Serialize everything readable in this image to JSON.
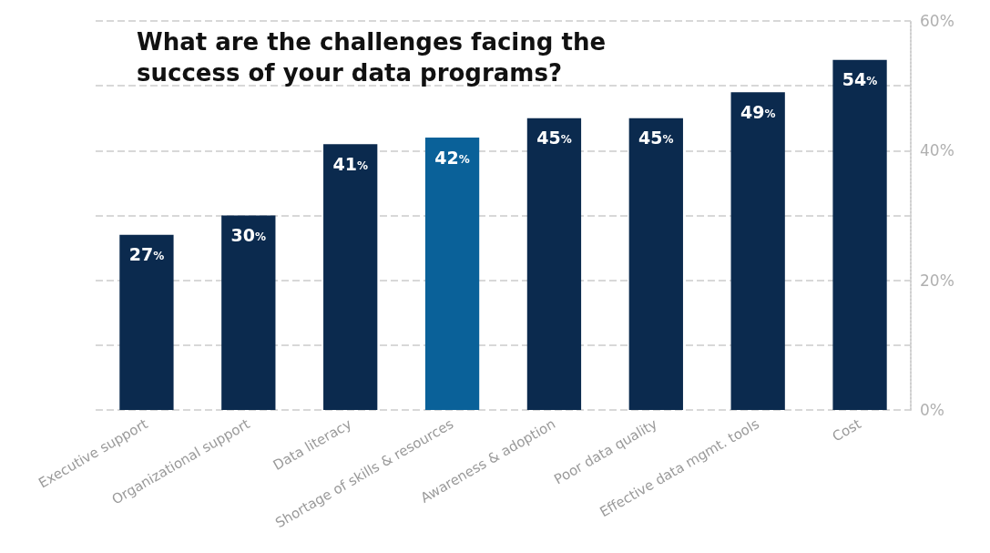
{
  "chart_data": {
    "type": "bar",
    "title": "What are the challenges facing the success of your data programs?",
    "categories": [
      "Executive support",
      "Organizational support",
      "Data literacy",
      "Shortage of skills & resources",
      "Awareness & adoption",
      "Poor data quality",
      "Effective data mgmt. tools",
      "Cost"
    ],
    "values": [
      27,
      30,
      41,
      42,
      45,
      45,
      49,
      54
    ],
    "colors": [
      "#0b2a4e",
      "#0b2a4e",
      "#0b2a4e",
      "#0a6199",
      "#0b2a4e",
      "#0b2a4e",
      "#0b2a4e",
      "#0b2a4e"
    ],
    "value_labels": [
      "27%",
      "30%",
      "41%",
      "42%",
      "45%",
      "45%",
      "49%",
      "54%"
    ],
    "ylim": [
      0,
      60
    ],
    "yticks": [
      {
        "value": 0,
        "label": "0%"
      },
      {
        "value": 10,
        "label": null
      },
      {
        "value": 20,
        "label": "20%"
      },
      {
        "value": 30,
        "label": null
      },
      {
        "value": 40,
        "label": "40%"
      },
      {
        "value": 50,
        "label": null
      },
      {
        "value": 60,
        "label": "60%"
      }
    ],
    "grid": "y"
  }
}
